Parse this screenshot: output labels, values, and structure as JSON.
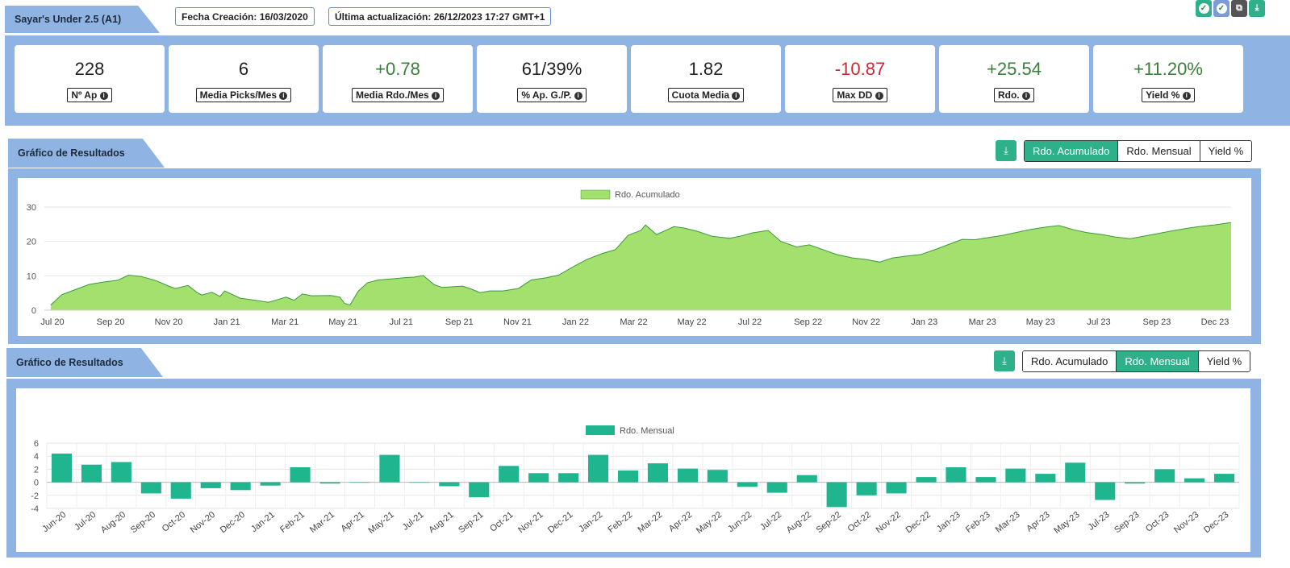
{
  "header": {
    "title": "Sayar's Under 2.5 (A1)",
    "created": "Fecha Creación: 16/03/2020",
    "updated": "Última actualización: 26/12/2023 17:27 GMT+1"
  },
  "top_icons": [
    {
      "name": "check-circle-icon",
      "color": "#2eb18a"
    },
    {
      "name": "check-circle-icon",
      "color": "#7b9ad9"
    },
    {
      "name": "copy-icon",
      "color": "#555555"
    },
    {
      "name": "download-icon",
      "color": "#2eb18a"
    }
  ],
  "stats": [
    {
      "value": "228",
      "label": "Nº Ap",
      "tone": "neutral"
    },
    {
      "value": "6",
      "label": "Media Picks/Mes",
      "tone": "neutral"
    },
    {
      "value": "+0.78",
      "label": "Media Rdo./Mes",
      "tone": "pos"
    },
    {
      "value": "61/39%",
      "label": "% Ap. G./P.",
      "tone": "neutral"
    },
    {
      "value": "1.82",
      "label": "Cuota Media",
      "tone": "neutral"
    },
    {
      "value": "-10.87",
      "label": "Max DD",
      "tone": "neg"
    },
    {
      "value": "+25.54",
      "label": "Rdo.",
      "tone": "pos"
    },
    {
      "value": "+11.20%",
      "label": "Yield %",
      "tone": "pos"
    }
  ],
  "sections": [
    {
      "title": "Gráfico de Resultados",
      "buttons": [
        "Rdo. Acumulado",
        "Rdo. Mensual",
        "Yield %"
      ],
      "active": 0
    },
    {
      "title": "Gráfico de Resultados",
      "buttons": [
        "Rdo. Acumulado",
        "Rdo. Mensual",
        "Yield %"
      ],
      "active": 1
    }
  ],
  "colors": {
    "accent": "#2eb18a",
    "panel": "#8fb4e3",
    "area_fill": "#a3e06e",
    "area_line": "#3a9a3a",
    "bar": "#1fb58f",
    "positive": "#3b7d3b",
    "negative": "#d0282e"
  },
  "chart_data": [
    {
      "type": "area",
      "series": [
        {
          "name": "Rdo. Acumulado",
          "x": [
            "2020-06-08",
            "2020-06-20",
            "2020-07-05",
            "2020-07-20",
            "2020-08-05",
            "2020-08-20",
            "2020-09-01",
            "2020-09-15",
            "2020-10-01",
            "2020-10-15",
            "2020-10-22",
            "2020-11-05",
            "2020-11-15",
            "2020-11-20",
            "2020-12-01",
            "2020-12-10",
            "2020-12-15",
            "2021-01-01",
            "2021-01-20",
            "2021-02-01",
            "2021-02-10",
            "2021-02-20",
            "2021-03-01",
            "2021-03-10",
            "2021-03-20",
            "2021-04-10",
            "2021-04-20",
            "2021-04-25",
            "2021-05-01",
            "2021-05-10",
            "2021-05-20",
            "2021-06-01",
            "2021-06-20",
            "2021-07-01",
            "2021-07-10",
            "2021-07-20",
            "2021-08-01",
            "2021-08-10",
            "2021-08-20",
            "2021-09-01",
            "2021-09-10",
            "2021-09-20",
            "2021-10-01",
            "2021-10-15",
            "2021-11-01",
            "2021-11-15",
            "2021-12-01",
            "2021-12-15",
            "2022-01-01",
            "2022-01-15",
            "2022-02-01",
            "2022-02-15",
            "2022-03-01",
            "2022-03-15",
            "2022-03-20",
            "2022-04-01",
            "2022-04-15",
            "2022-04-20",
            "2022-05-01",
            "2022-05-15",
            "2022-06-01",
            "2022-06-20",
            "2022-07-01",
            "2022-07-15",
            "2022-08-01",
            "2022-08-15",
            "2022-09-01",
            "2022-09-15",
            "2022-10-01",
            "2022-10-15",
            "2022-11-01",
            "2022-11-15",
            "2022-12-01",
            "2022-12-15",
            "2023-01-01",
            "2023-01-15",
            "2023-02-01",
            "2023-02-15",
            "2023-03-01",
            "2023-03-15",
            "2023-04-01",
            "2023-04-15",
            "2023-05-01",
            "2023-05-15",
            "2023-06-01",
            "2023-06-15",
            "2023-07-01",
            "2023-07-15",
            "2023-08-01",
            "2023-08-15",
            "2023-09-01",
            "2023-09-15",
            "2023-10-01",
            "2023-10-15",
            "2023-11-01",
            "2023-11-15",
            "2023-12-01",
            "2023-12-20"
          ],
          "values": [
            1.5,
            4.5,
            6.0,
            7.5,
            8.2,
            8.7,
            10.2,
            9.8,
            8.6,
            7.0,
            6.3,
            7.2,
            5.1,
            4.4,
            5.2,
            4.0,
            5.6,
            3.5,
            2.8,
            2.3,
            3.0,
            3.8,
            2.9,
            4.7,
            4.2,
            4.3,
            3.8,
            2.0,
            1.5,
            5.5,
            8.0,
            8.8,
            9.2,
            9.5,
            9.6,
            10.1,
            7.4,
            6.6,
            6.8,
            7.0,
            6.2,
            5.1,
            5.6,
            5.6,
            6.3,
            8.8,
            9.4,
            10.2,
            12.8,
            14.8,
            16.5,
            17.6,
            21.8,
            23.2,
            24.8,
            22.0,
            23.7,
            24.3,
            23.9,
            23.0,
            21.5,
            20.9,
            21.5,
            22.5,
            23.2,
            20.0,
            18.4,
            19.0,
            17.5,
            16.2,
            15.2,
            14.8,
            14.0,
            15.2,
            15.8,
            16.2,
            17.8,
            19.2,
            20.6,
            20.5,
            21.2,
            21.8,
            22.7,
            23.5,
            24.2,
            24.6,
            23.4,
            22.6,
            22.0,
            21.3,
            20.8,
            21.5,
            22.3,
            23.0,
            23.8,
            24.3,
            24.8,
            25.5
          ]
        }
      ],
      "ylim": [
        0,
        30
      ],
      "yticks": [
        0,
        10,
        20,
        30
      ],
      "xticks": [
        "Jul 20",
        "Sep 20",
        "Nov 20",
        "Jan 21",
        "Mar 21",
        "May 21",
        "Jul 21",
        "Sep 21",
        "Nov 21",
        "Jan 22",
        "Mar 22",
        "May 22",
        "Jul 22",
        "Sep 22",
        "Nov 22",
        "Jan 23",
        "Mar 23",
        "May 23",
        "Jul 23",
        "Sep 23",
        "Dec 23"
      ],
      "legend": "top-center",
      "grid": true
    },
    {
      "type": "bar",
      "categories": [
        "Jun-20",
        "Jul-20",
        "Aug-20",
        "Sep-20",
        "Oct-20",
        "Nov-20",
        "Dec-20",
        "Jan-21",
        "Feb-21",
        "Mar-21",
        "Apr-21",
        "May-21",
        "Jul-21",
        "Aug-21",
        "Sep-21",
        "Oct-21",
        "Nov-21",
        "Dec-21",
        "Jan-22",
        "Feb-22",
        "Mar-22",
        "Apr-22",
        "May-22",
        "Jun-22",
        "Jul-22",
        "Aug-22",
        "Sep-22",
        "Oct-22",
        "Nov-22",
        "Dec-22",
        "Jan-23",
        "Feb-23",
        "Mar-23",
        "Apr-23",
        "May-23",
        "Jul-23",
        "Sep-23",
        "Oct-23",
        "Nov-23",
        "Dec-23"
      ],
      "series": [
        {
          "name": "Rdo. Mensual",
          "values": [
            4.4,
            2.7,
            3.1,
            -1.7,
            -2.5,
            -0.9,
            -1.2,
            -0.5,
            2.3,
            -0.2,
            0.0,
            4.2,
            0.0,
            -0.6,
            -2.3,
            2.5,
            1.4,
            1.4,
            4.2,
            1.8,
            2.9,
            2.1,
            1.9,
            -0.7,
            -1.6,
            1.1,
            -3.8,
            -2.0,
            -1.7,
            0.8,
            2.3,
            0.8,
            2.1,
            1.3,
            3.0,
            -2.7,
            -0.2,
            2.0,
            0.6,
            1.3
          ]
        }
      ],
      "ylim": [
        -4,
        6
      ],
      "yticks": [
        -4,
        -2,
        0,
        2,
        4,
        6
      ],
      "legend": "top-center",
      "grid": true
    }
  ]
}
